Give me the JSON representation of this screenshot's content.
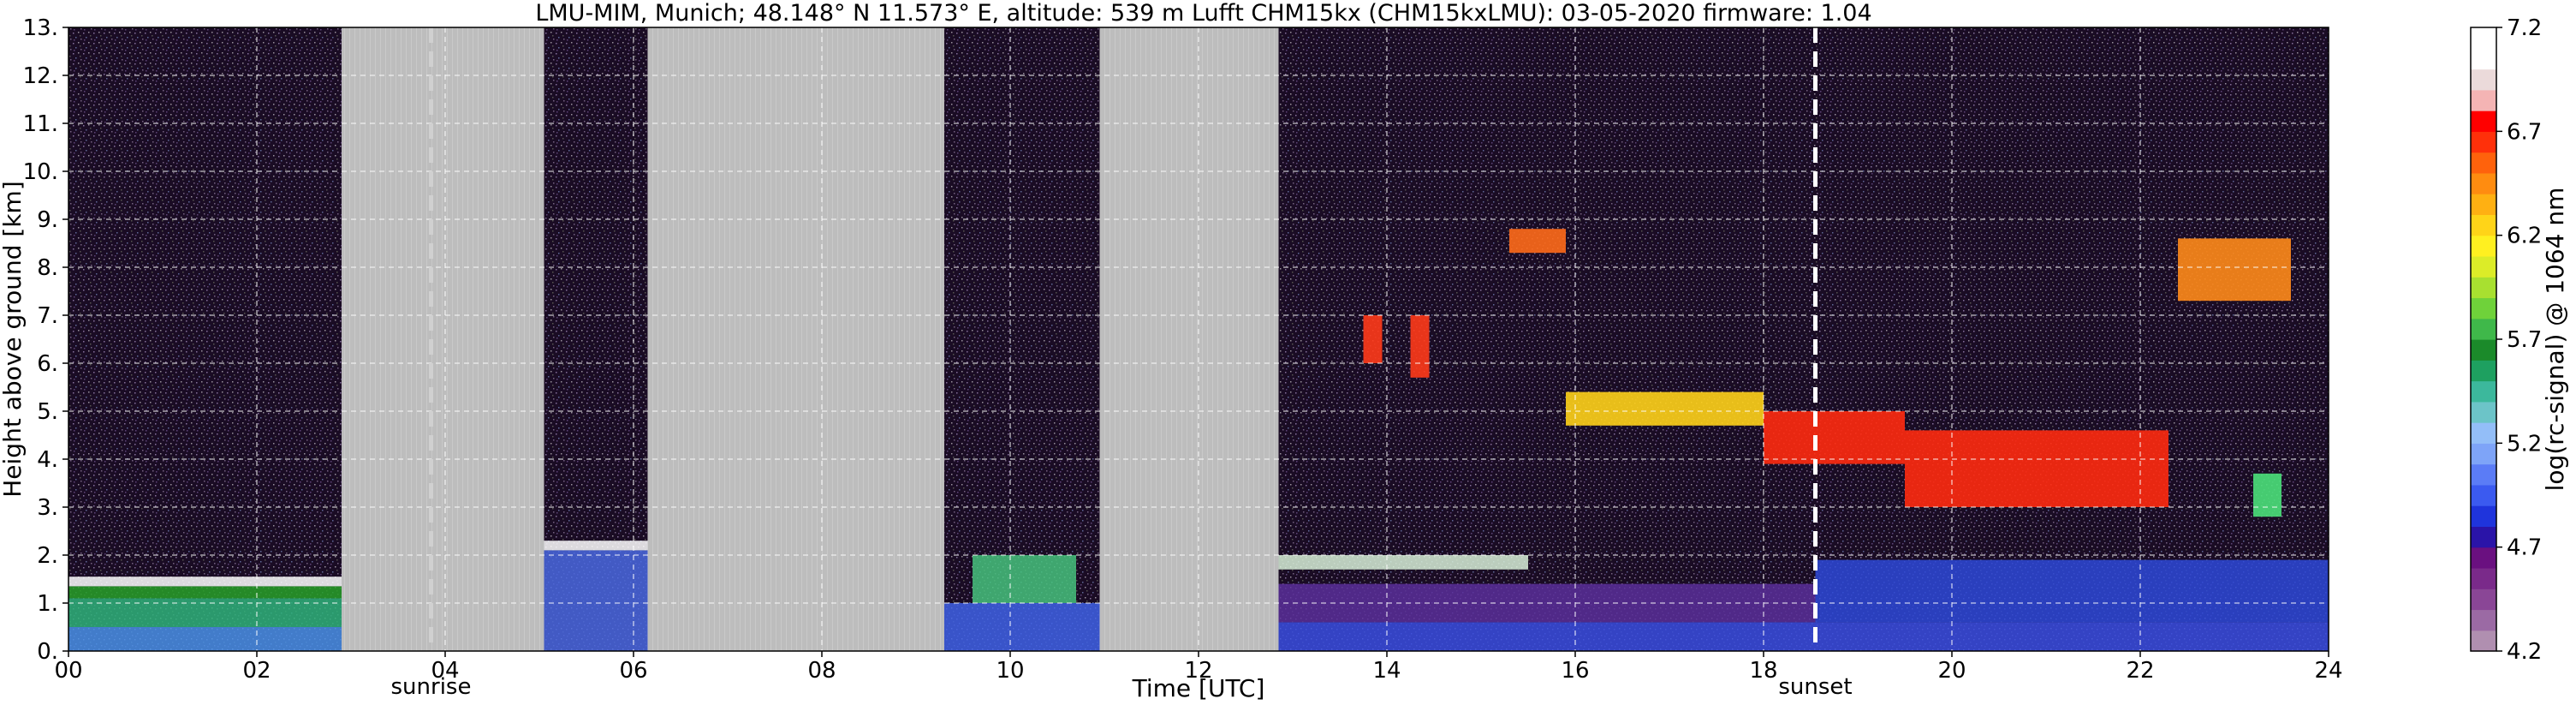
{
  "chart_data": {
    "type": "heatmap",
    "title": "LMU-MIM, Munich; 48.148° N 11.573° E, altitude: 539 m    Lufft CHM15kx (CHM15kxLMU): 03-05-2020    firmware: 1.04",
    "xlabel": "Time [UTC]",
    "ylabel": "Height above ground [km]",
    "xlim": [
      0,
      24
    ],
    "ylim": [
      0,
      13
    ],
    "x_ticks": [
      "00",
      "02",
      "04",
      "06",
      "08",
      "10",
      "12",
      "14",
      "16",
      "18",
      "20",
      "22",
      "24"
    ],
    "x_tick_values": [
      0,
      2,
      4,
      6,
      8,
      10,
      12,
      14,
      16,
      18,
      20,
      22,
      24
    ],
    "y_ticks": [
      "0.",
      "1.",
      "2.",
      "3.",
      "4.",
      "5.",
      "6.",
      "7.",
      "8.",
      "9.",
      "10.",
      "11.",
      "12.",
      "13."
    ],
    "y_tick_values": [
      0,
      1,
      2,
      3,
      4,
      5,
      6,
      7,
      8,
      9,
      10,
      11,
      12,
      13
    ],
    "grid": true,
    "background_color": "#1a0c24",
    "nodata_color": "#bdbdbd",
    "nodata_periods": [
      [
        2.9,
        5.05
      ],
      [
        6.15,
        9.3
      ],
      [
        10.95,
        12.85
      ]
    ],
    "events": [
      {
        "label": "sunrise",
        "time": 3.85,
        "color": "#d0d0d0"
      },
      {
        "label": "sunset",
        "time": 18.55,
        "color": "#ffffff"
      }
    ],
    "features": [
      {
        "kind": "aerosol",
        "t0": 0.0,
        "t1": 2.9,
        "h0": 0.0,
        "h1": 0.5,
        "color": "#4a90e8"
      },
      {
        "kind": "aerosol",
        "t0": 0.0,
        "t1": 2.9,
        "h0": 0.5,
        "h1": 1.1,
        "color": "#2fb37a"
      },
      {
        "kind": "aerosol",
        "t0": 0.0,
        "t1": 2.9,
        "h0": 1.1,
        "h1": 1.35,
        "color": "#28a028"
      },
      {
        "kind": "layer",
        "t0": 0.0,
        "t1": 2.9,
        "h0": 1.35,
        "h1": 1.55,
        "color": "#ffffff"
      },
      {
        "kind": "aerosol",
        "t0": 5.05,
        "t1": 6.15,
        "h0": 0.0,
        "h1": 2.1,
        "color": "#4a68e0"
      },
      {
        "kind": "layer",
        "t0": 5.05,
        "t1": 6.15,
        "h0": 2.1,
        "h1": 2.3,
        "color": "#ffffff"
      },
      {
        "kind": "aerosol",
        "t0": 9.3,
        "t1": 10.95,
        "h0": 0.0,
        "h1": 1.0,
        "color": "#3f62e6"
      },
      {
        "kind": "aerosol",
        "t0": 9.6,
        "t1": 10.7,
        "h0": 1.0,
        "h1": 2.0,
        "color": "#46c27c"
      },
      {
        "kind": "aerosol",
        "t0": 12.85,
        "t1": 24.0,
        "h0": 0.0,
        "h1": 0.6,
        "color": "#3a4ee0"
      },
      {
        "kind": "aerosol",
        "t0": 12.85,
        "t1": 18.55,
        "h0": 0.6,
        "h1": 1.4,
        "color": "#5a2f9a"
      },
      {
        "kind": "aerosol",
        "t0": 18.55,
        "t1": 24.0,
        "h0": 0.6,
        "h1": 1.9,
        "color": "#2e49d8"
      },
      {
        "kind": "layer",
        "t0": 12.85,
        "t1": 15.5,
        "h0": 1.7,
        "h1": 2.0,
        "color": "#d8f0d8"
      },
      {
        "kind": "cloud",
        "t0": 13.75,
        "t1": 13.95,
        "h0": 6.0,
        "h1": 7.0,
        "color": "#ff3a1a"
      },
      {
        "kind": "cloud",
        "t0": 14.25,
        "t1": 14.45,
        "h0": 5.7,
        "h1": 7.0,
        "color": "#ff3a1a"
      },
      {
        "kind": "cloud",
        "t0": 15.3,
        "t1": 15.9,
        "h0": 8.3,
        "h1": 8.8,
        "color": "#ff6a1a"
      },
      {
        "kind": "cloud",
        "t0": 15.9,
        "t1": 18.0,
        "h0": 4.7,
        "h1": 5.4,
        "color": "#ffd21a"
      },
      {
        "kind": "cloud",
        "t0": 18.0,
        "t1": 19.5,
        "h0": 3.9,
        "h1": 5.0,
        "color": "#ff2a10"
      },
      {
        "kind": "cloud",
        "t0": 19.5,
        "t1": 22.3,
        "h0": 3.0,
        "h1": 4.6,
        "color": "#ff2a10"
      },
      {
        "kind": "cloud",
        "t0": 22.4,
        "t1": 23.6,
        "h0": 7.3,
        "h1": 8.6,
        "color": "#ff8a1a"
      },
      {
        "kind": "cloud",
        "t0": 23.2,
        "t1": 23.5,
        "h0": 2.8,
        "h1": 3.7,
        "color": "#4be07a"
      }
    ],
    "colorbar": {
      "label": "log(rc-signal) @ 1064 nm",
      "range": [
        4.2,
        7.2
      ],
      "tick_labels": [
        "4.2",
        "4.7",
        "5.2",
        "5.7",
        "6.2",
        "6.7",
        "7.2"
      ],
      "tick_values": [
        4.2,
        4.7,
        5.2,
        5.7,
        6.2,
        6.7,
        7.2
      ],
      "colors": [
        "#b08fb0",
        "#9b6aa4",
        "#8a4696",
        "#7a2a8a",
        "#6a1080",
        "#2a14a8",
        "#1f34dc",
        "#3b5af0",
        "#5b7cf6",
        "#7ea4f8",
        "#93bef8",
        "#6cc4c8",
        "#3cb89c",
        "#1ea060",
        "#1b8a2a",
        "#3fb84a",
        "#6fd23a",
        "#a8e030",
        "#dcec28",
        "#fff020",
        "#ffd418",
        "#ffb012",
        "#ff8c10",
        "#ff620c",
        "#ff300a",
        "#ff0000",
        "#f4b4b4",
        "#ebdada",
        "#ffffff",
        "#ffffff"
      ]
    }
  }
}
